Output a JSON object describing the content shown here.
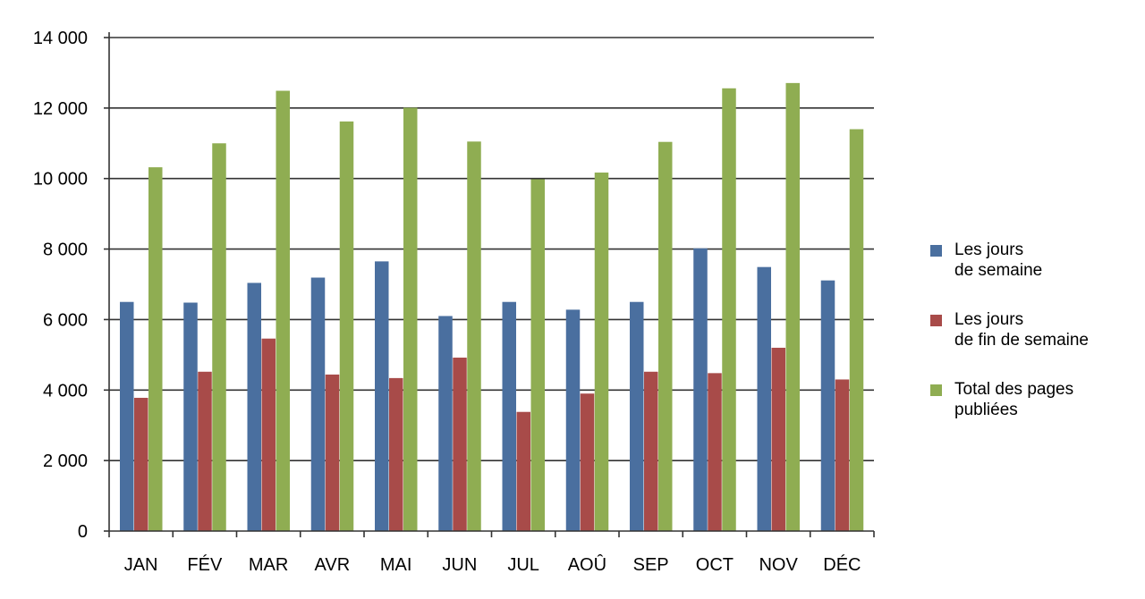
{
  "chart_data": {
    "type": "bar",
    "categories": [
      "JAN",
      "FÉV",
      "MAR",
      "AVR",
      "MAI",
      "JUN",
      "JUL",
      "AOÛ",
      "SEP",
      "OCT",
      "NOV",
      "DÉC"
    ],
    "series": [
      {
        "name": "Les jours\nde semaine",
        "color": "#4a6f9f",
        "values": [
          6500,
          6480,
          7040,
          7190,
          7650,
          6100,
          6500,
          6280,
          6500,
          8020,
          7490,
          7110
        ]
      },
      {
        "name": "Les jours\nde fin de semaine",
        "color": "#a84b49",
        "values": [
          3780,
          4520,
          5460,
          4440,
          4340,
          4920,
          3380,
          3900,
          4520,
          4480,
          5200,
          4300
        ]
      },
      {
        "name": "Total des pages\npubliées",
        "color": "#8fad52",
        "values": [
          10320,
          11000,
          12490,
          11620,
          12010,
          11050,
          9980,
          10170,
          11040,
          12560,
          12710,
          11400
        ]
      }
    ],
    "ylim": [
      0,
      14000
    ],
    "yticks": [
      0,
      2000,
      4000,
      6000,
      8000,
      10000,
      12000,
      14000
    ],
    "ytick_labels": [
      "0",
      "2 000",
      "4 000",
      "6 000",
      "8 000",
      "10 000",
      "12 000",
      "14 000"
    ],
    "grid": true,
    "legend_position": "right"
  }
}
